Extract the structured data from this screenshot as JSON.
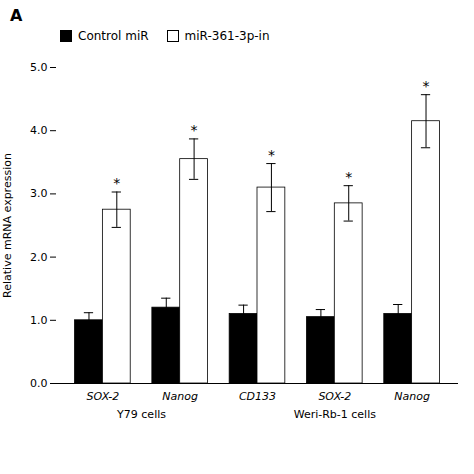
{
  "chart_data": {
    "type": "bar",
    "title": "A",
    "categories": [
      "SOX-2",
      "Nanog",
      "CD133",
      "SOX-2",
      "Nanog"
    ],
    "groups": [
      0,
      0,
      1,
      1,
      1
    ],
    "group_labels": [
      "Y79 cells",
      "Weri-Rb-1 cells"
    ],
    "series": [
      {
        "name": "Control miR",
        "color": "#000000",
        "values": [
          1.0,
          1.2,
          1.1,
          1.05,
          1.1
        ],
        "errors": [
          0.12,
          0.15,
          0.14,
          0.12,
          0.15
        ]
      },
      {
        "name": "miR-361-3p-in",
        "color": "#ffffff",
        "values": [
          2.75,
          3.55,
          3.1,
          2.85,
          4.15
        ],
        "errors": [
          0.28,
          0.32,
          0.38,
          0.28,
          0.42
        ]
      }
    ],
    "annotations": [
      {
        "text": "*",
        "series": "miR-361-3p-in"
      }
    ],
    "ylabel": "Relative mRNA expression",
    "ylim": [
      0,
      5.0
    ],
    "yticks": [
      0,
      1,
      2,
      3,
      4,
      5
    ],
    "grid": false,
    "legend": "top"
  }
}
